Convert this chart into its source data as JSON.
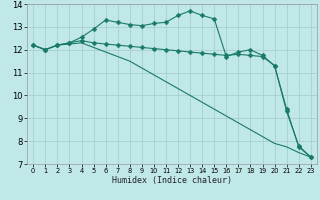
{
  "title": "",
  "xlabel": "Humidex (Indice chaleur)",
  "bg_color": "#c0e8e8",
  "grid_color": "#a8d0d0",
  "line_color": "#1a7a6a",
  "xlim": [
    -0.5,
    23.5
  ],
  "ylim": [
    7,
    14
  ],
  "xticks": [
    0,
    1,
    2,
    3,
    4,
    5,
    6,
    7,
    8,
    9,
    10,
    11,
    12,
    13,
    14,
    15,
    16,
    17,
    18,
    19,
    20,
    21,
    22,
    23
  ],
  "yticks": [
    7,
    8,
    9,
    10,
    11,
    12,
    13,
    14
  ],
  "series": [
    {
      "x": [
        0,
        1,
        2,
        3,
        4,
        5,
        6,
        7,
        8,
        9,
        10,
        11,
        12,
        13,
        14,
        15,
        16,
        17,
        18,
        19,
        20,
        21,
        22,
        23
      ],
      "y": [
        12.2,
        12.0,
        12.2,
        12.3,
        12.55,
        12.9,
        13.3,
        13.2,
        13.1,
        13.05,
        13.15,
        13.2,
        13.5,
        13.7,
        13.5,
        13.35,
        11.7,
        11.9,
        12.0,
        11.75,
        11.3,
        9.3,
        7.8,
        7.3
      ],
      "marker": "D",
      "marker_size": 2.5,
      "lw": 0.8
    },
    {
      "x": [
        0,
        1,
        2,
        3,
        4,
        5,
        6,
        7,
        8,
        9,
        10,
        11,
        12,
        13,
        14,
        15,
        16,
        17,
        18,
        19,
        20,
        21,
        22,
        23
      ],
      "y": [
        12.2,
        12.0,
        12.2,
        12.3,
        12.4,
        12.3,
        12.25,
        12.2,
        12.15,
        12.1,
        12.05,
        12.0,
        11.95,
        11.9,
        11.85,
        11.8,
        11.75,
        11.8,
        11.75,
        11.7,
        11.3,
        9.4,
        7.75,
        7.3
      ],
      "marker": "D",
      "marker_size": 2.5,
      "lw": 0.8
    },
    {
      "x": [
        0,
        1,
        2,
        3,
        4,
        5,
        6,
        7,
        8,
        9,
        10,
        11,
        12,
        13,
        14,
        15,
        16,
        17,
        18,
        19,
        20,
        21,
        22,
        23
      ],
      "y": [
        12.2,
        12.0,
        12.2,
        12.25,
        12.3,
        12.1,
        11.9,
        11.7,
        11.5,
        11.2,
        10.9,
        10.6,
        10.3,
        10.0,
        9.7,
        9.4,
        9.1,
        8.8,
        8.5,
        8.2,
        7.9,
        7.75,
        7.5,
        7.3
      ],
      "marker": null,
      "marker_size": 0,
      "lw": 0.8
    }
  ]
}
